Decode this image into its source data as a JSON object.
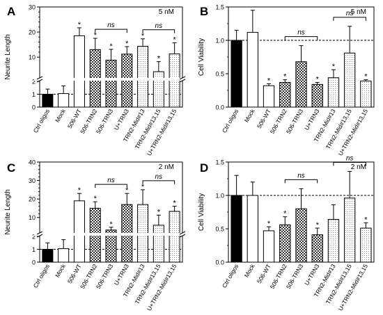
{
  "figure": {
    "hatch_label": ""
  },
  "chart_data": [
    {
      "panel": "A",
      "type": "bar",
      "concentration": "5 nM",
      "ylabel": "Neurite Length",
      "broken_axis": true,
      "lower_ticks": [
        0,
        1,
        2
      ],
      "upper_ticks": [
        10,
        20,
        30
      ],
      "ylim": [
        0,
        30
      ],
      "reference_line": 1,
      "categories": [
        "Ctrl oligos",
        "Mock",
        "506-WT",
        "506-TRN2",
        "506-TRN3",
        "U+TRN3",
        "TRN2-Mid#13",
        "TRN2-Mid#13,15",
        "U+TRN2-Mid#13,15"
      ],
      "values": [
        1.0,
        1.05,
        18.5,
        13,
        8.8,
        11.2,
        14.3,
        4.2,
        11.3
      ],
      "errors": [
        0.4,
        0.6,
        3.2,
        4.5,
        4.3,
        3.0,
        3.0,
        4.0,
        4.4
      ],
      "significant": [
        false,
        false,
        true,
        true,
        true,
        true,
        true,
        true,
        true
      ],
      "brackets": [
        {
          "from": 3,
          "to": 5,
          "label": "ns"
        },
        {
          "from": 6,
          "to": 8,
          "label": "ns"
        }
      ]
    },
    {
      "panel": "B",
      "type": "bar",
      "concentration": "5 nM",
      "ylabel": "Cell Viability",
      "broken_axis": false,
      "ylim": [
        0,
        1.5
      ],
      "ticks": [
        0.0,
        0.5,
        1.0,
        1.5
      ],
      "reference_line": 1.0,
      "categories": [
        "Ctrl oligos",
        "Mock",
        "506-WT",
        "506-TRN2",
        "506-TRN3",
        "U+TRN3",
        "TRN2-Mid#13",
        "TRN2-Mid#13,15",
        "U+TRN2-Mid#13,15"
      ],
      "values": [
        1.0,
        1.12,
        0.32,
        0.37,
        0.68,
        0.34,
        0.44,
        0.81,
        0.39
      ],
      "errors": [
        0.15,
        0.33,
        0.03,
        0.04,
        0.24,
        0.03,
        0.12,
        0.4,
        0.02
      ],
      "significant": [
        false,
        false,
        true,
        true,
        false,
        true,
        true,
        false,
        true
      ],
      "brackets": [
        {
          "from": 3,
          "to": 5,
          "label": "ns"
        },
        {
          "from": 6,
          "to": 8,
          "label": "ns"
        }
      ]
    },
    {
      "panel": "C",
      "type": "bar",
      "concentration": "2 nM",
      "ylabel": "Neurite Length",
      "broken_axis": true,
      "lower_ticks": [
        0,
        1,
        2
      ],
      "upper_ticks": [
        10,
        20,
        30,
        40
      ],
      "ylim": [
        0,
        40
      ],
      "reference_line": 1,
      "categories": [
        "Ctrl oligos",
        "Mock",
        "506-WT",
        "506-TRN2",
        "506-TRN3",
        "U+TRN3",
        "TRN2-Mid#13",
        "TRN2-Mid#13,15",
        "U+TRN2-Mid#13,15"
      ],
      "values": [
        1.0,
        1.05,
        19,
        15,
        3.2,
        17,
        17,
        5.8,
        13.3
      ],
      "errors": [
        0.5,
        0.7,
        4.0,
        3.5,
        1.5,
        6.0,
        8.0,
        5.5,
        2.8
      ],
      "significant": [
        false,
        false,
        true,
        true,
        true,
        true,
        true,
        true,
        true
      ],
      "brackets": [
        {
          "from": 3,
          "to": 5,
          "label": "ns"
        },
        {
          "from": 6,
          "to": 8,
          "label": "ns"
        }
      ]
    },
    {
      "panel": "D",
      "type": "bar",
      "concentration": "2 nM",
      "ylabel": "Cell Viability",
      "broken_axis": false,
      "ylim": [
        0,
        1.5
      ],
      "ticks": [
        0.0,
        0.5,
        1.0,
        1.5
      ],
      "reference_line": 1.0,
      "categories": [
        "Ctrl oligos",
        "Mock",
        "506-WT",
        "506-TRN2",
        "506-TRN3",
        "U+TRN3",
        "TRN2-Mid#13",
        "TRN2-Mid#13,15",
        "U+TRN2-Mid#13,15"
      ],
      "values": [
        1.0,
        1.0,
        0.47,
        0.56,
        0.8,
        0.41,
        0.64,
        0.96,
        0.51
      ],
      "errors": [
        0.3,
        0.2,
        0.06,
        0.12,
        0.3,
        0.1,
        0.22,
        0.4,
        0.08
      ],
      "significant": [
        false,
        false,
        true,
        true,
        false,
        true,
        false,
        false,
        true
      ],
      "brackets": [
        {
          "from": 3,
          "to": 5,
          "label": "ns"
        },
        {
          "from": 6,
          "to": 8,
          "label": "ns"
        }
      ]
    }
  ]
}
